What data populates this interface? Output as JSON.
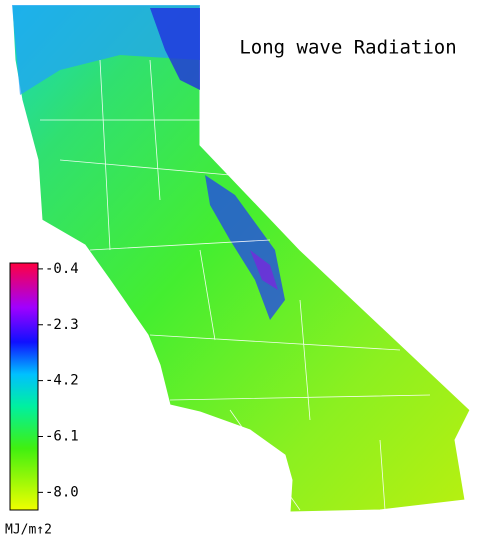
{
  "title": "Long wave Radiation",
  "colorbar": {
    "range": [
      -8.6,
      -0.2
    ],
    "ticks": [
      -0.4,
      -2.3,
      -4.2,
      -6.1,
      {
        "value": -8,
        "label": "-8.0"
      }
    ],
    "unit": "MJ/m↑2"
  }
}
